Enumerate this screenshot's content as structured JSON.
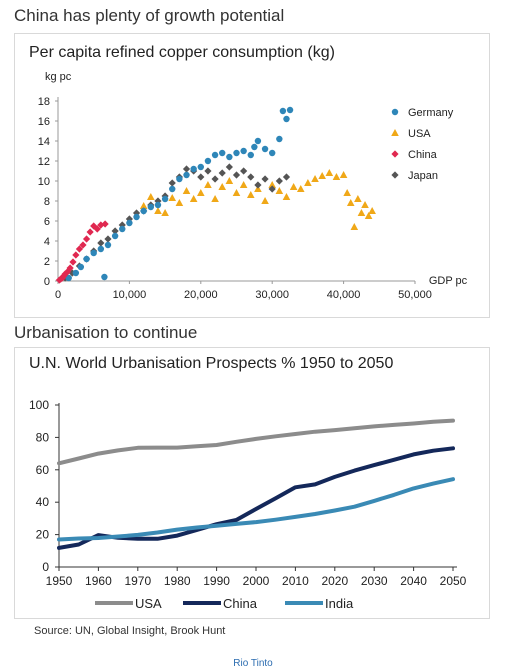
{
  "section1_title": "China has plenty of growth potential",
  "section2_title": "Urbanisation to continue",
  "source": "Source: UN, Global Insight, Brook Hunt",
  "credit": "Rio Tinto",
  "colors": {
    "germany": "#2e86b8",
    "usa": "#f0a818",
    "china": "#e02850",
    "japan": "#555555",
    "usa_line": "#8c8c8c",
    "china_line": "#14285a",
    "india_line": "#3a8ab5"
  },
  "chart_data": [
    {
      "type": "scatter",
      "title": "Per capita refined copper consumption (kg)",
      "xlabel": "GDP pc",
      "ylabel": "kg pc",
      "xlim": [
        0,
        50000
      ],
      "ylim": [
        0,
        18
      ],
      "x_ticks": [
        0,
        10000,
        20000,
        30000,
        40000,
        50000
      ],
      "x_tick_labels": [
        "0",
        "10,000",
        "20,000",
        "30,000",
        "40,000",
        "50,000"
      ],
      "y_ticks": [
        0,
        2,
        4,
        6,
        8,
        10,
        12,
        14,
        16,
        18
      ],
      "legend_position": "right",
      "series": [
        {
          "name": "Germany",
          "marker": "circle",
          "points": [
            [
              1500,
              0.3
            ],
            [
              2500,
              0.8
            ],
            [
              3200,
              1.4
            ],
            [
              4000,
              2.2
            ],
            [
              5000,
              2.8
            ],
            [
              6000,
              3.2
            ],
            [
              6500,
              0.4
            ],
            [
              7000,
              3.6
            ],
            [
              8000,
              4.5
            ],
            [
              9000,
              5.2
            ],
            [
              10000,
              5.8
            ],
            [
              11000,
              6.4
            ],
            [
              12000,
              7.0
            ],
            [
              13000,
              7.4
            ],
            [
              14000,
              7.6
            ],
            [
              15000,
              8.2
            ],
            [
              16000,
              9.2
            ],
            [
              17000,
              10.2
            ],
            [
              18000,
              10.6
            ],
            [
              19000,
              11.2
            ],
            [
              20000,
              11.4
            ],
            [
              21000,
              12.0
            ],
            [
              22000,
              12.6
            ],
            [
              23000,
              12.8
            ],
            [
              24000,
              12.4
            ],
            [
              25000,
              12.8
            ],
            [
              26000,
              13.0
            ],
            [
              27000,
              12.6
            ],
            [
              27500,
              13.4
            ],
            [
              28000,
              14.0
            ],
            [
              29000,
              13.2
            ],
            [
              30000,
              12.8
            ],
            [
              31000,
              14.2
            ],
            [
              31500,
              17.0
            ],
            [
              32000,
              16.2
            ],
            [
              32500,
              17.1
            ]
          ]
        },
        {
          "name": "USA",
          "marker": "triangle",
          "points": [
            [
              12000,
              7.5
            ],
            [
              13000,
              8.4
            ],
            [
              14000,
              7.0
            ],
            [
              15000,
              6.8
            ],
            [
              16000,
              8.3
            ],
            [
              17000,
              7.8
            ],
            [
              18000,
              9.0
            ],
            [
              19000,
              8.2
            ],
            [
              20000,
              8.8
            ],
            [
              21000,
              9.6
            ],
            [
              22000,
              8.2
            ],
            [
              23000,
              9.4
            ],
            [
              24000,
              10.0
            ],
            [
              25000,
              8.8
            ],
            [
              26000,
              9.6
            ],
            [
              27000,
              8.6
            ],
            [
              28000,
              9.2
            ],
            [
              29000,
              8.0
            ],
            [
              30000,
              9.6
            ],
            [
              31000,
              9.0
            ],
            [
              32000,
              8.4
            ],
            [
              33000,
              9.4
            ],
            [
              34000,
              9.2
            ],
            [
              35000,
              9.8
            ],
            [
              36000,
              10.2
            ],
            [
              37000,
              10.5
            ],
            [
              38000,
              10.8
            ],
            [
              39000,
              10.4
            ],
            [
              40000,
              10.6
            ],
            [
              40500,
              8.8
            ],
            [
              41000,
              7.8
            ],
            [
              41500,
              5.4
            ],
            [
              42000,
              8.2
            ],
            [
              42500,
              6.8
            ],
            [
              43000,
              7.6
            ],
            [
              43500,
              6.5
            ],
            [
              44000,
              7.0
            ]
          ]
        },
        {
          "name": "China",
          "marker": "diamond",
          "points": [
            [
              200,
              0.1
            ],
            [
              400,
              0.2
            ],
            [
              600,
              0.3
            ],
            [
              800,
              0.5
            ],
            [
              1000,
              0.7
            ],
            [
              1300,
              0.9
            ],
            [
              1700,
              1.3
            ],
            [
              2100,
              1.9
            ],
            [
              2500,
              2.6
            ],
            [
              3000,
              3.2
            ],
            [
              3500,
              3.6
            ],
            [
              4000,
              4.2
            ],
            [
              4500,
              4.9
            ],
            [
              5000,
              5.5
            ],
            [
              5500,
              5.2
            ],
            [
              6000,
              5.6
            ],
            [
              6600,
              5.7
            ]
          ]
        },
        {
          "name": "Japan",
          "marker": "diamond",
          "points": [
            [
              1000,
              0.3
            ],
            [
              2000,
              0.8
            ],
            [
              3000,
              1.5
            ],
            [
              4000,
              2.2
            ],
            [
              5000,
              3.0
            ],
            [
              6000,
              3.8
            ],
            [
              7000,
              4.2
            ],
            [
              8000,
              5.0
            ],
            [
              9000,
              5.6
            ],
            [
              10000,
              6.2
            ],
            [
              11000,
              6.8
            ],
            [
              12000,
              7.0
            ],
            [
              13000,
              7.6
            ],
            [
              14000,
              8.0
            ],
            [
              15000,
              8.5
            ],
            [
              16000,
              9.8
            ],
            [
              17000,
              10.4
            ],
            [
              18000,
              11.2
            ],
            [
              19000,
              11.0
            ],
            [
              20000,
              10.4
            ],
            [
              21000,
              11.0
            ],
            [
              22000,
              10.2
            ],
            [
              23000,
              10.8
            ],
            [
              24000,
              11.4
            ],
            [
              25000,
              10.6
            ],
            [
              26000,
              11.0
            ],
            [
              27000,
              10.4
            ],
            [
              28000,
              9.6
            ],
            [
              29000,
              10.2
            ],
            [
              30000,
              9.2
            ],
            [
              31000,
              10.0
            ],
            [
              32000,
              10.4
            ]
          ]
        }
      ]
    },
    {
      "type": "line",
      "title": "U.N. World Urbanisation Prospects % 1950 to 2050",
      "xlim": [
        1950,
        2050
      ],
      "ylim": [
        0,
        100
      ],
      "x_ticks": [
        1950,
        1960,
        1970,
        1980,
        1990,
        2000,
        2010,
        2020,
        2030,
        2040,
        2050
      ],
      "y_ticks": [
        0,
        20,
        40,
        60,
        80,
        100
      ],
      "legend_position": "bottom",
      "series": [
        {
          "name": "USA",
          "x": [
            1950,
            1955,
            1960,
            1965,
            1970,
            1975,
            1980,
            1985,
            1990,
            1995,
            2000,
            2005,
            2010,
            2015,
            2020,
            2025,
            2030,
            2035,
            2040,
            2045,
            2050
          ],
          "values": [
            64,
            67,
            70,
            72,
            73.6,
            73.7,
            73.7,
            74.5,
            75.3,
            77.3,
            79.1,
            80.7,
            82.1,
            83.5,
            84.5,
            85.7,
            86.8,
            87.7,
            88.6,
            89.6,
            90.4
          ]
        },
        {
          "name": "China",
          "x": [
            1950,
            1955,
            1960,
            1965,
            1970,
            1975,
            1980,
            1985,
            1990,
            1995,
            2000,
            2005,
            2010,
            2015,
            2020,
            2025,
            2030,
            2035,
            2040,
            2045,
            2050
          ],
          "values": [
            11.8,
            13.9,
            19.7,
            18,
            17.4,
            17.4,
            19.4,
            22.9,
            26.4,
            29,
            35.8,
            42.5,
            49.2,
            51,
            55.6,
            59.5,
            62.9,
            66.2,
            69.5,
            71.8,
            73.3
          ]
        },
        {
          "name": "India",
          "x": [
            1950,
            1955,
            1960,
            1965,
            1970,
            1975,
            1980,
            1985,
            1990,
            1995,
            2000,
            2005,
            2010,
            2015,
            2020,
            2025,
            2030,
            2035,
            2040,
            2045,
            2050
          ],
          "values": [
            17,
            17.6,
            17.9,
            18.8,
            19.8,
            21.3,
            23.1,
            24.4,
            25.5,
            26.6,
            27.7,
            29.2,
            30.9,
            32.7,
            34.9,
            37.2,
            40.8,
            44.5,
            48.5,
            51.5,
            54.2
          ]
        }
      ]
    }
  ]
}
